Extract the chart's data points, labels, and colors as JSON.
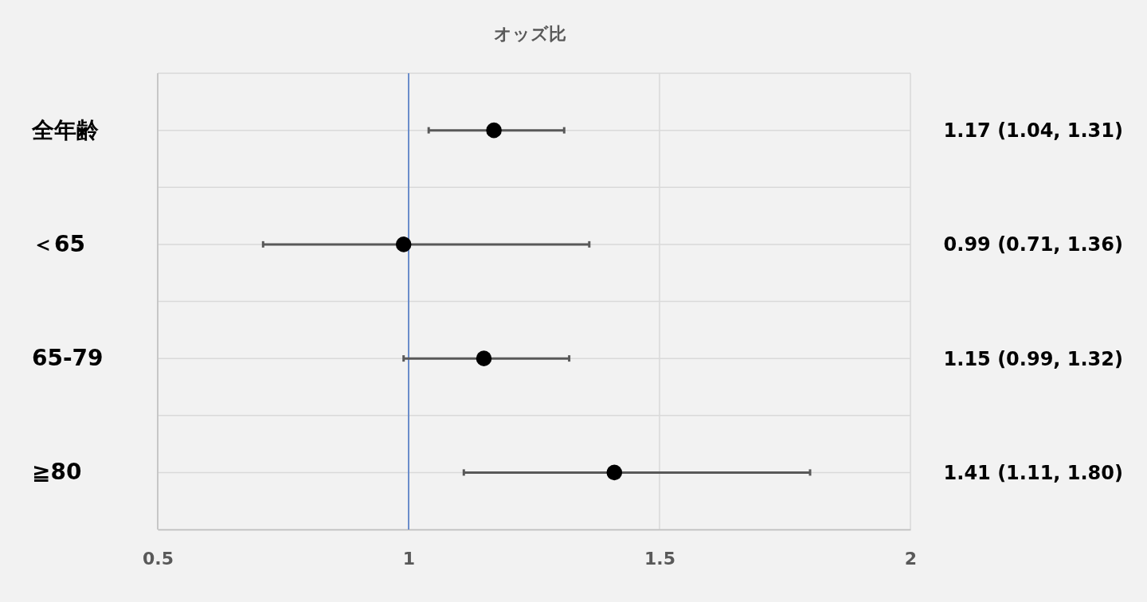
{
  "chart_data": {
    "type": "scatter",
    "orientation": "horizontal",
    "title": "オッズ比",
    "categories": [
      "全年齢",
      "＜65",
      "65-79",
      "≧80"
    ],
    "values": [
      1.17,
      0.99,
      1.15,
      1.41
    ],
    "errors": [
      [
        1.04,
        1.31
      ],
      [
        0.71,
        1.36
      ],
      [
        0.99,
        1.32
      ],
      [
        1.11,
        1.8
      ]
    ],
    "value_labels": [
      "1.17 (1.04, 1.31)",
      "0.99 (0.71, 1.36)",
      "1.15 (0.99, 1.32)",
      "1.41 (1.11, 1.80)"
    ],
    "color": "#000000",
    "marker": "circle",
    "xlim": [
      0.5,
      2
    ],
    "xticks": [
      0.5,
      1,
      1.5,
      2
    ],
    "ref_lines": [
      {
        "axis": "x",
        "value": 1,
        "color": "#4472c4"
      }
    ],
    "grid": true
  }
}
